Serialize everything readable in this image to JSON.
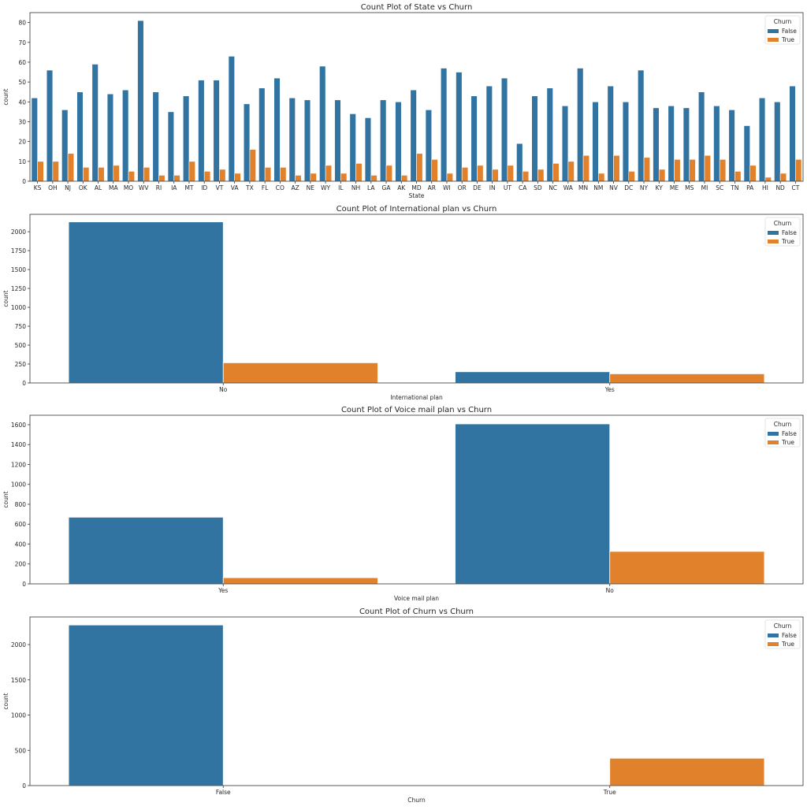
{
  "colors": {
    "False": "#3274a1",
    "True": "#e1812c"
  },
  "chart_data": [
    {
      "type": "bar",
      "title": "Count Plot of State vs Churn",
      "xlabel": "State",
      "ylabel": "count",
      "ylim": [
        0,
        85
      ],
      "yticks": [
        0,
        10,
        20,
        30,
        40,
        50,
        60,
        70,
        80
      ],
      "legend": {
        "title": "Churn",
        "position": "top-right",
        "entries": [
          "False",
          "True"
        ]
      },
      "categories": [
        "KS",
        "OH",
        "NJ",
        "OK",
        "AL",
        "MA",
        "MO",
        "WV",
        "RI",
        "IA",
        "MT",
        "ID",
        "VT",
        "VA",
        "TX",
        "FL",
        "CO",
        "AZ",
        "NE",
        "WY",
        "IL",
        "NH",
        "LA",
        "GA",
        "AK",
        "MD",
        "AR",
        "WI",
        "OR",
        "DE",
        "IN",
        "UT",
        "CA",
        "SD",
        "NC",
        "WA",
        "MN",
        "NM",
        "NV",
        "DC",
        "NY",
        "KY",
        "ME",
        "MS",
        "MI",
        "SC",
        "TN",
        "PA",
        "HI",
        "ND",
        "CT"
      ],
      "series": [
        {
          "name": "False",
          "values": [
            42,
            56,
            36,
            45,
            59,
            44,
            46,
            81,
            45,
            35,
            43,
            51,
            51,
            63,
            39,
            47,
            52,
            42,
            41,
            58,
            41,
            34,
            32,
            41,
            40,
            46,
            36,
            57,
            55,
            43,
            48,
            52,
            19,
            43,
            47,
            38,
            57,
            40,
            48,
            40,
            56,
            37,
            38,
            37,
            45,
            38,
            36,
            28,
            42,
            40,
            48
          ]
        },
        {
          "name": "True",
          "values": [
            10,
            10,
            14,
            7,
            7,
            8,
            5,
            7,
            3,
            3,
            10,
            5,
            6,
            4,
            16,
            7,
            7,
            3,
            4,
            8,
            4,
            9,
            3,
            8,
            3,
            14,
            11,
            4,
            7,
            8,
            6,
            8,
            5,
            6,
            9,
            10,
            13,
            4,
            13,
            5,
            12,
            6,
            11,
            11,
            13,
            11,
            5,
            8,
            2,
            4,
            11
          ]
        }
      ]
    },
    {
      "type": "bar",
      "title": "Count Plot of International plan vs Churn",
      "xlabel": "International plan",
      "ylabel": "count",
      "ylim": [
        0,
        2230
      ],
      "yticks": [
        0,
        250,
        500,
        750,
        1000,
        1250,
        1500,
        1750,
        2000
      ],
      "legend": {
        "title": "Churn",
        "position": "top-right",
        "entries": [
          "False",
          "True"
        ]
      },
      "categories": [
        "No",
        "Yes"
      ],
      "series": [
        {
          "name": "False",
          "values": [
            2130,
            148
          ]
        },
        {
          "name": "True",
          "values": [
            267,
            121
          ]
        }
      ]
    },
    {
      "type": "bar",
      "title": "Count Plot of Voice mail plan vs Churn",
      "xlabel": "Voice mail plan",
      "ylabel": "count",
      "ylim": [
        0,
        1695
      ],
      "yticks": [
        0,
        200,
        400,
        600,
        800,
        1000,
        1200,
        1400,
        1600
      ],
      "legend": {
        "title": "Churn",
        "position": "top-right",
        "entries": [
          "False",
          "True"
        ]
      },
      "categories": [
        "Yes",
        "No"
      ],
      "series": [
        {
          "name": "False",
          "values": [
            670,
            1608
          ]
        },
        {
          "name": "True",
          "values": [
            62,
            326
          ]
        }
      ]
    },
    {
      "type": "bar",
      "title": "Count Plot of Churn vs Churn",
      "xlabel": "Churn",
      "ylabel": "count",
      "ylim": [
        0,
        2392
      ],
      "yticks": [
        0,
        500,
        1000,
        1500,
        2000
      ],
      "legend": {
        "title": "Churn",
        "position": "top-right",
        "entries": [
          "False",
          "True"
        ]
      },
      "categories": [
        "False",
        "True"
      ],
      "series": [
        {
          "name": "False",
          "values": [
            2278,
            0
          ]
        },
        {
          "name": "True",
          "values": [
            0,
            388
          ]
        }
      ]
    }
  ]
}
